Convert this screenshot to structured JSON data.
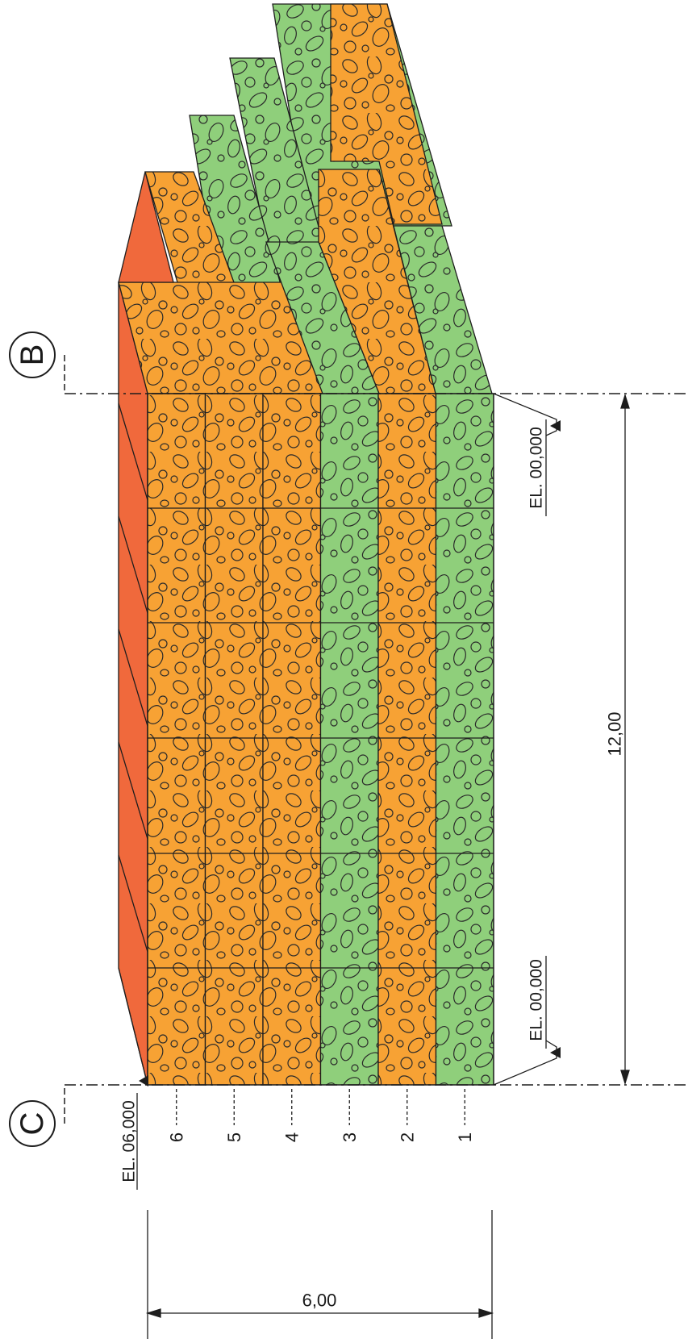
{
  "colors": {
    "orange": "#f7a234",
    "green": "#8fcf7b",
    "top": "#f0693c",
    "line": "#1d1d1d",
    "green_dark": "#6fbf5a"
  },
  "grid_axes": {
    "C": "C",
    "B": "B"
  },
  "elevations": {
    "top_left": "EL. 06,000",
    "bottom_mid": "EL. 00,000",
    "bottom_right": "EL. 00,000"
  },
  "dimensions": {
    "length": "12,00",
    "height": "6,00"
  },
  "layers": {
    "l1": "1",
    "l2": "2",
    "l3": "3",
    "l4": "4",
    "l5": "5",
    "l6": "6"
  },
  "layer_fill": {
    "l1": "green",
    "l2": "orange",
    "l3": "green",
    "l4": "orange",
    "l5": "orange",
    "l6": "orange"
  }
}
